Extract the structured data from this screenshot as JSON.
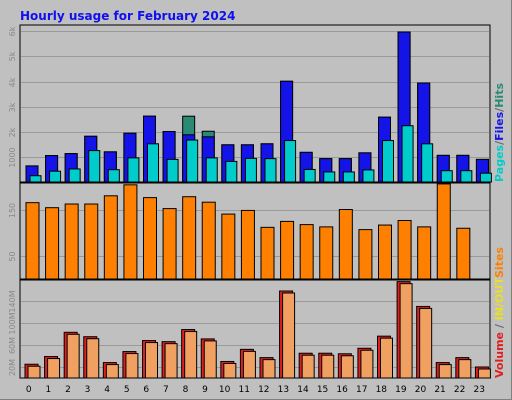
{
  "colors": {
    "background": "#c0c0c0",
    "frame_dark": "#808080",
    "title": "#1010ee",
    "pages": "#00cccc",
    "files": "#1414e8",
    "hits": "#2a8a72",
    "sites": "#ff8000",
    "in_out": "#e8e020",
    "volume": "#e02020",
    "volume_light": "#f0a060"
  },
  "chart_data": [
    {
      "type": "bar",
      "title": "Hourly usage for February 2024",
      "categories": [
        "0",
        "1",
        "2",
        "3",
        "4",
        "5",
        "6",
        "7",
        "8",
        "9",
        "10",
        "11",
        "12",
        "13",
        "14",
        "15",
        "16",
        "17",
        "18",
        "19",
        "20",
        "21",
        "22",
        "23"
      ],
      "ylim": [
        0,
        6250
      ],
      "y_ticks": [
        1000,
        2000,
        3000,
        4000,
        5000,
        6000
      ],
      "y_tick_labels": [
        "1000",
        "2k",
        "3k",
        "4k",
        "5k",
        "6k"
      ],
      "legend_position": "right",
      "legend": {
        "pages": "Pages",
        "files": "Files",
        "hits": "Hits"
      },
      "series": [
        {
          "name": "Hits",
          "values": [
            640,
            1050,
            1130,
            1820,
            1200,
            1940,
            2620,
            2010,
            2620,
            2020,
            1480,
            1480,
            1520,
            4010,
            1180,
            930,
            930,
            1160,
            2580,
            5970,
            3940,
            1060,
            1060,
            900
          ]
        },
        {
          "name": "Files",
          "values": [
            640,
            1050,
            1130,
            1820,
            1200,
            1940,
            2620,
            2010,
            1880,
            1800,
            1480,
            1480,
            1520,
            4010,
            1180,
            930,
            930,
            1160,
            2580,
            5970,
            3940,
            1060,
            1060,
            900
          ]
        },
        {
          "name": "Pages",
          "values": [
            250,
            430,
            520,
            1250,
            490,
            960,
            1520,
            900,
            1670,
            960,
            820,
            940,
            930,
            1650,
            500,
            400,
            400,
            480,
            1650,
            2240,
            1520,
            450,
            450,
            350
          ]
        }
      ]
    },
    {
      "type": "bar",
      "categories": [
        "0",
        "1",
        "2",
        "3",
        "4",
        "5",
        "6",
        "7",
        "8",
        "9",
        "10",
        "11",
        "12",
        "13",
        "14",
        "15",
        "16",
        "17",
        "18",
        "19",
        "20",
        "21",
        "22",
        "23"
      ],
      "ylim": [
        0,
        210
      ],
      "y_ticks": [
        50,
        150
      ],
      "y_tick_labels": [
        "50",
        "150"
      ],
      "legend_position": "right",
      "legend": {
        "sites": "Sites"
      },
      "series": [
        {
          "name": "Sites",
          "values": [
            167,
            156,
            164,
            164,
            182,
            206,
            178,
            154,
            180,
            168,
            142,
            150,
            113,
            126,
            119,
            114,
            152,
            108,
            118,
            128,
            114,
            208,
            111,
            0
          ]
        }
      ]
    },
    {
      "type": "bar",
      "categories": [
        "0",
        "1",
        "2",
        "3",
        "4",
        "5",
        "6",
        "7",
        "8",
        "9",
        "10",
        "11",
        "12",
        "13",
        "14",
        "15",
        "16",
        "17",
        "18",
        "19",
        "20",
        "21",
        "22",
        "23"
      ],
      "ylim": [
        0,
        178
      ],
      "y_ticks": [
        20,
        60,
        100,
        140
      ],
      "y_tick_labels": [
        "20M",
        "60M",
        "100M",
        "140M"
      ],
      "legend_position": "right",
      "legend": {
        "volume": "Volume",
        "in_out": "IN/OUT"
      },
      "series": [
        {
          "name": "Volume",
          "values": [
            25,
            39,
            83,
            75,
            28,
            48,
            68,
            66,
            88,
            71,
            30,
            52,
            37,
            158,
            45,
            45,
            44,
            54,
            76,
            175,
            130,
            28,
            37,
            20
          ]
        }
      ]
    }
  ]
}
